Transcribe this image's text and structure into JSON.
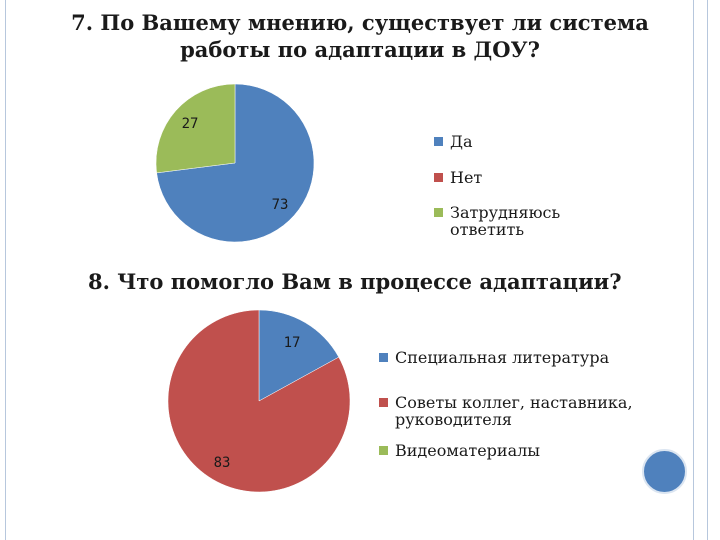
{
  "page": {
    "frame_color": "#b7c7dd",
    "deco_circle_color": "#4f81bd"
  },
  "chart_data": [
    {
      "type": "pie",
      "title": "7. По Вашему мнению, существует ли система работы по адаптации в ДОУ?",
      "categories": [
        "Да",
        "Нет",
        "Затрудняюсь ответить"
      ],
      "values": [
        73,
        0,
        27
      ],
      "data_labels": [
        "73",
        "",
        "27"
      ],
      "colors": [
        "#4f81bd",
        "#c0504d",
        "#9bbb59"
      ],
      "legend": "right"
    },
    {
      "type": "pie",
      "title": "8. Что помогло Вам в процессе адаптации?",
      "categories": [
        "Специальная литература",
        "Советы коллег, наставника, руководителя",
        "Видеоматериалы"
      ],
      "values": [
        17,
        83,
        0
      ],
      "data_labels": [
        "17",
        "83",
        ""
      ],
      "colors": [
        "#4f81bd",
        "#c0504d",
        "#9bbb59"
      ],
      "legend": "right"
    }
  ]
}
